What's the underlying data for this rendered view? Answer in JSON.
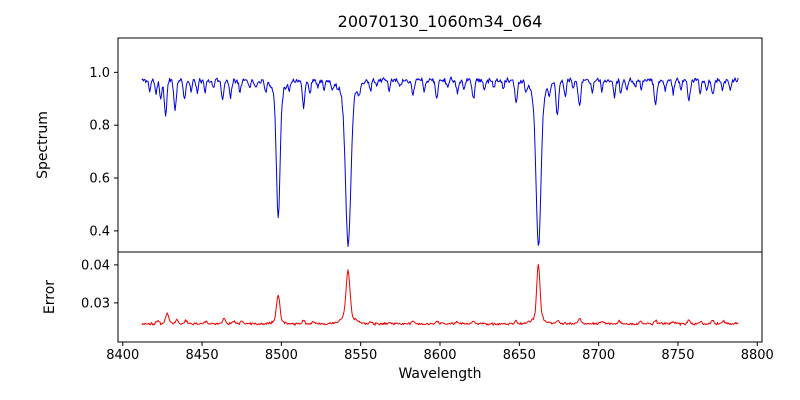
{
  "chart_data": {
    "type": "line",
    "title": "20070130_1060m34_064",
    "xlabel": "Wavelength",
    "xlim": [
      8397,
      8803
    ],
    "x_data_range": [
      8412,
      8788
    ],
    "sample_step": 0.5,
    "x_ticks": [
      8400,
      8450,
      8500,
      8550,
      8600,
      8650,
      8700,
      8750,
      8800
    ],
    "noise_seed": 11,
    "grid": false,
    "legend": "none",
    "panels": [
      {
        "name": "spectrum",
        "ylabel": "Spectrum",
        "color": "#0000dd",
        "ylim": [
          0.32,
          1.13
        ],
        "y_tick_values": [
          0.4,
          0.6,
          0.8,
          1.0
        ],
        "y_tick_labels": [
          "0.4",
          "0.6",
          "0.8",
          "1.0"
        ],
        "baseline": 0.97,
        "noise_amplitude": 0.015,
        "mode": "absorption",
        "features_format": [
          "center_wavelength",
          "amplitude",
          "gaussian_width"
        ],
        "features": [
          [
            8417,
            0.04,
            0.6
          ],
          [
            8421,
            0.05,
            0.6
          ],
          [
            8424,
            0.07,
            0.7
          ],
          [
            8427,
            0.13,
            0.8
          ],
          [
            8433,
            0.11,
            0.8
          ],
          [
            8439,
            0.07,
            0.7
          ],
          [
            8443,
            0.04,
            0.6
          ],
          [
            8447,
            0.05,
            0.6
          ],
          [
            8452,
            0.04,
            0.6
          ],
          [
            8457,
            0.03,
            0.6
          ],
          [
            8463,
            0.07,
            0.8
          ],
          [
            8468,
            0.06,
            0.7
          ],
          [
            8474,
            0.04,
            0.6
          ],
          [
            8480,
            0.03,
            0.6
          ],
          [
            8484,
            0.03,
            0.6
          ],
          [
            8490,
            0.04,
            0.6
          ],
          [
            8498.0,
            0.46,
            1.1
          ],
          [
            8498.0,
            0.06,
            3.5
          ],
          [
            8505,
            0.03,
            0.6
          ],
          [
            8514,
            0.1,
            0.8
          ],
          [
            8518,
            0.05,
            0.6
          ],
          [
            8523,
            0.03,
            0.6
          ],
          [
            8527,
            0.04,
            0.6
          ],
          [
            8532,
            0.03,
            0.6
          ],
          [
            8542.1,
            0.55,
            1.6
          ],
          [
            8542.1,
            0.07,
            5.0
          ],
          [
            8549,
            0.03,
            0.6
          ],
          [
            8556,
            0.04,
            0.6
          ],
          [
            8560,
            0.03,
            0.6
          ],
          [
            8568,
            0.04,
            0.6
          ],
          [
            8575,
            0.03,
            0.6
          ],
          [
            8583,
            0.06,
            0.7
          ],
          [
            8590,
            0.04,
            0.6
          ],
          [
            8598,
            0.07,
            0.7
          ],
          [
            8605,
            0.03,
            0.6
          ],
          [
            8611,
            0.05,
            0.7
          ],
          [
            8615,
            0.04,
            0.6
          ],
          [
            8621,
            0.07,
            0.7
          ],
          [
            8628,
            0.04,
            0.6
          ],
          [
            8634,
            0.03,
            0.6
          ],
          [
            8640,
            0.04,
            0.6
          ],
          [
            8648,
            0.09,
            0.8
          ],
          [
            8654,
            0.03,
            0.6
          ],
          [
            8662.1,
            0.56,
            1.5
          ],
          [
            8662.1,
            0.07,
            4.5
          ],
          [
            8669,
            0.04,
            0.6
          ],
          [
            8674,
            0.13,
            0.8
          ],
          [
            8679,
            0.06,
            0.7
          ],
          [
            8684,
            0.03,
            0.6
          ],
          [
            8688,
            0.1,
            0.8
          ],
          [
            8696,
            0.05,
            0.6
          ],
          [
            8702,
            0.04,
            0.6
          ],
          [
            8710,
            0.06,
            0.7
          ],
          [
            8714,
            0.05,
            0.6
          ],
          [
            8718,
            0.04,
            0.6
          ],
          [
            8723,
            0.03,
            0.6
          ],
          [
            8727,
            0.04,
            0.6
          ],
          [
            8736,
            0.09,
            0.8
          ],
          [
            8742,
            0.04,
            0.6
          ],
          [
            8747,
            0.05,
            0.6
          ],
          [
            8752,
            0.03,
            0.6
          ],
          [
            8757,
            0.08,
            0.8
          ],
          [
            8764,
            0.05,
            0.6
          ],
          [
            8768,
            0.04,
            0.6
          ],
          [
            8772,
            0.06,
            0.7
          ],
          [
            8778,
            0.04,
            0.6
          ],
          [
            8783,
            0.03,
            0.6
          ]
        ]
      },
      {
        "name": "error",
        "ylabel": "Error",
        "color": "#ee0000",
        "ylim": [
          0.0197,
          0.0434
        ],
        "y_tick_values": [
          0.03,
          0.04
        ],
        "y_tick_labels": [
          "0.03",
          "0.04"
        ],
        "baseline": 0.0245,
        "noise_amplitude": 0.0005,
        "mode": "emission",
        "features_format": [
          "center_wavelength",
          "amplitude",
          "gaussian_width"
        ],
        "features": [
          [
            8422,
            0.0008,
            0.8
          ],
          [
            8428,
            0.0026,
            1.0
          ],
          [
            8434,
            0.0013,
            0.8
          ],
          [
            8440,
            0.0008,
            0.8
          ],
          [
            8452,
            0.0006,
            0.8
          ],
          [
            8464,
            0.0014,
            0.9
          ],
          [
            8470,
            0.0007,
            0.8
          ],
          [
            8475,
            0.0008,
            0.8
          ],
          [
            8498,
            0.0066,
            1.0
          ],
          [
            8498,
            0.001,
            3.0
          ],
          [
            8514,
            0.0009,
            0.8
          ],
          [
            8520,
            0.0006,
            0.8
          ],
          [
            8542,
            0.012,
            1.2
          ],
          [
            8542,
            0.002,
            4.0
          ],
          [
            8556,
            0.0005,
            0.8
          ],
          [
            8568,
            0.0005,
            0.8
          ],
          [
            8583,
            0.0006,
            0.8
          ],
          [
            8598,
            0.0007,
            0.8
          ],
          [
            8611,
            0.0005,
            0.8
          ],
          [
            8621,
            0.0006,
            0.8
          ],
          [
            8648,
            0.0008,
            0.8
          ],
          [
            8662,
            0.014,
            1.0
          ],
          [
            8662,
            0.0018,
            3.5
          ],
          [
            8674,
            0.001,
            0.8
          ],
          [
            8688,
            0.0014,
            0.9
          ],
          [
            8702,
            0.0006,
            0.8
          ],
          [
            8713,
            0.0009,
            0.8
          ],
          [
            8727,
            0.0006,
            0.8
          ],
          [
            8736,
            0.0008,
            0.8
          ],
          [
            8747,
            0.0006,
            0.8
          ],
          [
            8757,
            0.0011,
            0.8
          ],
          [
            8764,
            0.0007,
            0.8
          ],
          [
            8772,
            0.0009,
            0.8
          ],
          [
            8779,
            0.0007,
            0.8
          ]
        ]
      }
    ]
  }
}
